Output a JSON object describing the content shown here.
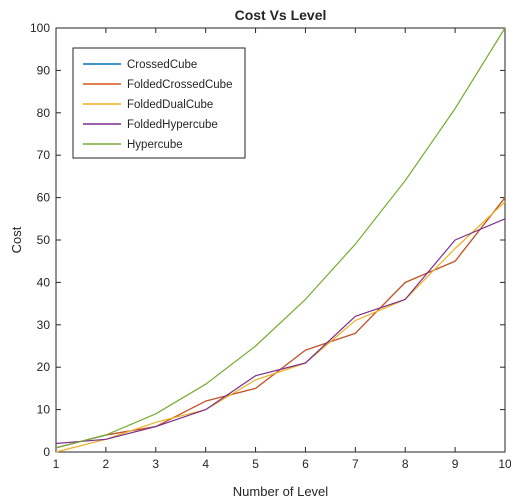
{
  "chart_data": {
    "type": "line",
    "title": "Cost Vs Level",
    "xlabel": "Number of Level",
    "ylabel": "Cost",
    "xlim": [
      1,
      10
    ],
    "ylim": [
      0,
      100
    ],
    "x_ticks": [
      "1",
      "2",
      "3",
      "4",
      "5",
      "6",
      "7",
      "8",
      "9",
      "10"
    ],
    "y_ticks": [
      "0",
      "10",
      "20",
      "30",
      "40",
      "50",
      "60",
      "70",
      "80",
      "90",
      "100"
    ],
    "grid": false,
    "legend_position": "top-left",
    "x": [
      1,
      2,
      3,
      4,
      5,
      6,
      7,
      8,
      9,
      10
    ],
    "series": [
      {
        "name": "CrossedCube",
        "color": "#0072BD",
        "values": [
          1,
          4,
          6,
          12,
          15,
          24,
          28,
          40,
          45,
          60
        ]
      },
      {
        "name": "FoldedCrossedCube",
        "color": "#D95319",
        "values": [
          1,
          4,
          6,
          12,
          15,
          24,
          28,
          40,
          45,
          60
        ]
      },
      {
        "name": "FoldedDualCube",
        "color": "#EDB120",
        "values": [
          0,
          3,
          7,
          10,
          17,
          21,
          31,
          36,
          48,
          59
        ]
      },
      {
        "name": "FoldedHypercube",
        "color": "#7E2F8E",
        "values": [
          2,
          3,
          6,
          10,
          18,
          21,
          32,
          36,
          50,
          55
        ]
      },
      {
        "name": "Hypercube",
        "color": "#77AC30",
        "values": [
          1,
          4,
          9,
          16,
          25,
          36,
          49,
          64,
          81,
          100
        ]
      }
    ]
  }
}
